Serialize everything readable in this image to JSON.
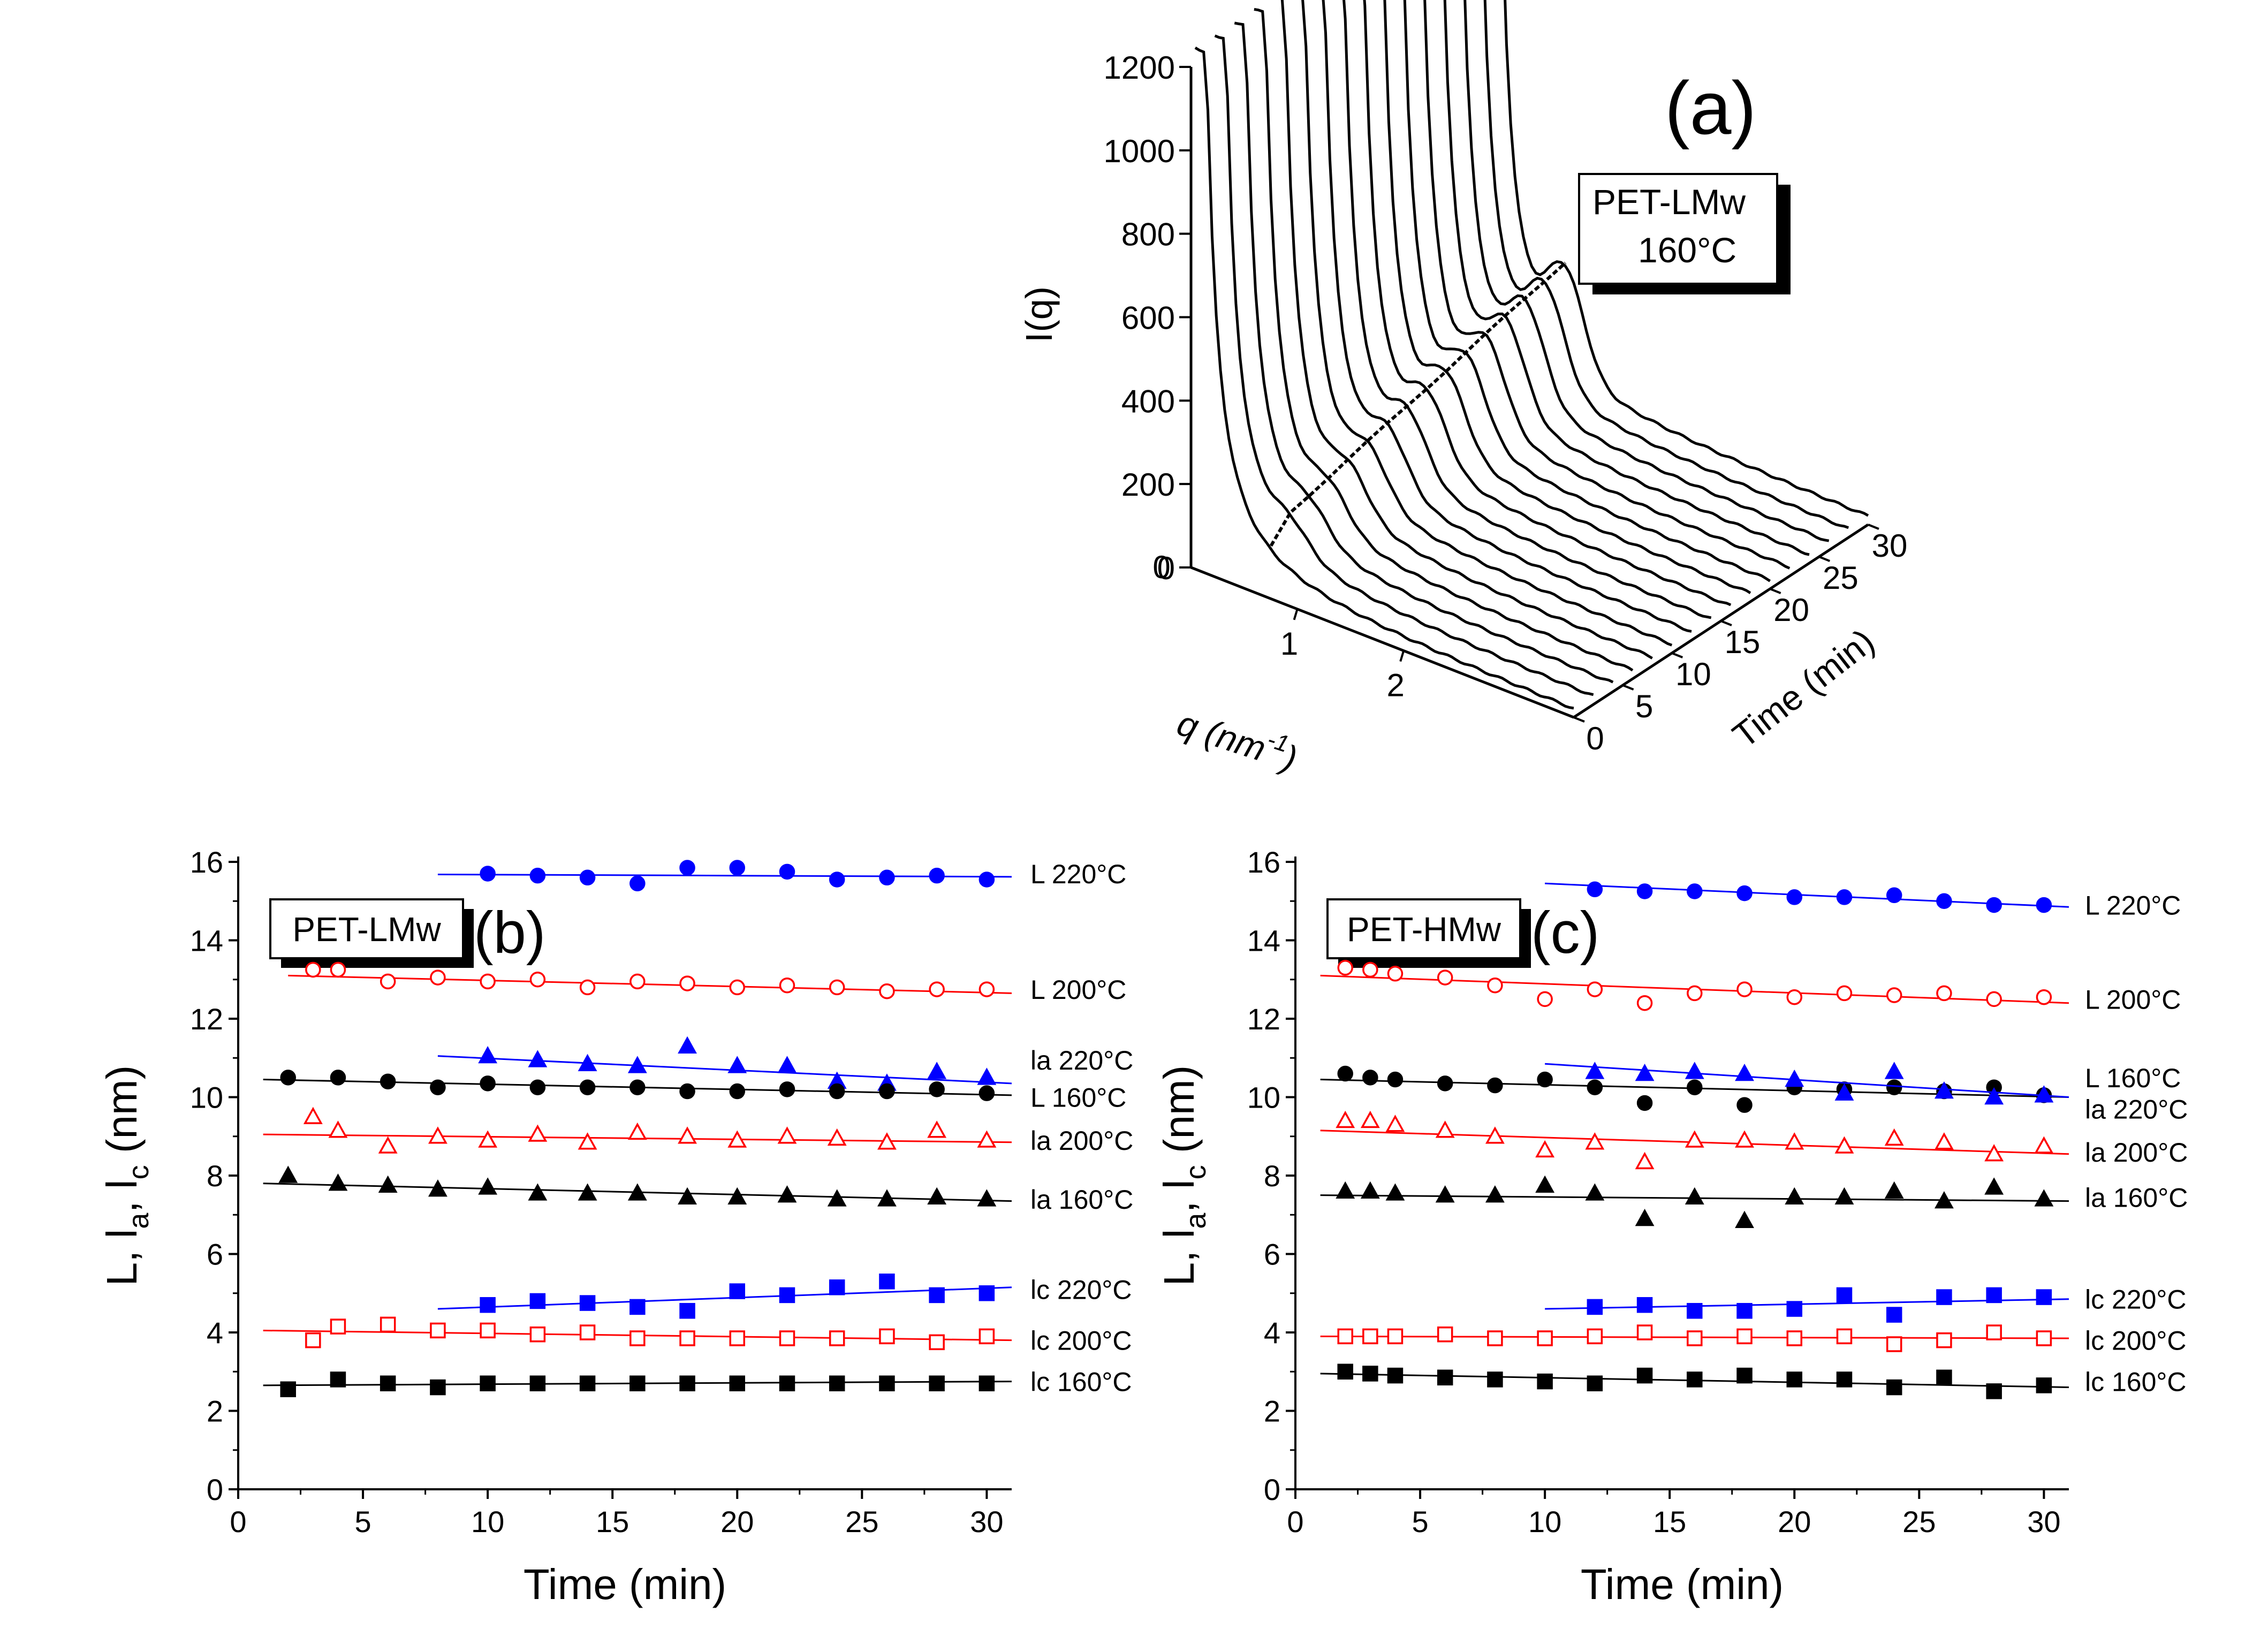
{
  "panel_a": {
    "label": "(a)",
    "box_line1": "PET-LMw",
    "box_line2": "160°C",
    "y_axis_label": "I(q)",
    "x_axis_label": "q (nm",
    "x_axis_sup": "-1",
    "x_axis_close": ")",
    "depth_axis_label": "Time (min)"
  },
  "chart_data": [
    {
      "panel": "a",
      "type": "line",
      "kind": "3d-waterfall",
      "title": "",
      "y": {
        "label": "I(q)",
        "ticks": [
          "0",
          "200",
          "400",
          "600",
          "800",
          "1000",
          "1200"
        ],
        "range": [
          0,
          1200
        ]
      },
      "x": {
        "label": "q (nm-1)",
        "ticks": [
          "1",
          "2"
        ],
        "range": [
          0,
          3.6
        ]
      },
      "z": {
        "label": "Time (min)",
        "ticks": [
          "0",
          "5",
          "10",
          "15",
          "20",
          "25",
          "30"
        ],
        "range": [
          0,
          30
        ]
      },
      "num_series": 16,
      "annotation": "PET-LMw 160°C"
    },
    {
      "panel": "b",
      "type": "scatter",
      "label": "(b)",
      "box": "PET-LMw",
      "xlabel": "Time (min)",
      "ylabel": "L, l",
      "ylabel_sub_a": "a",
      "ylabel_sub_c": "c",
      "ylabel_sep": ", l",
      "ylabel_unit": " (nm)",
      "xlim": [
        0,
        31
      ],
      "ylim": [
        0,
        16
      ],
      "xticks": [
        0,
        5,
        10,
        15,
        20,
        25,
        30
      ],
      "yticks": [
        0,
        2,
        4,
        6,
        8,
        10,
        12,
        14,
        16
      ],
      "series": [
        {
          "name": "L 220°C",
          "color": "#0000ff",
          "marker": "circle",
          "filled": true,
          "x": [
            10,
            12,
            14,
            16,
            18,
            20,
            22,
            24,
            26,
            28,
            30
          ],
          "y": [
            15.7,
            15.65,
            15.6,
            15.45,
            15.85,
            15.85,
            15.75,
            15.55,
            15.6,
            15.65,
            15.55
          ],
          "fit": [
            8,
            15.68,
            31,
            15.62
          ],
          "label_y": 15.7
        },
        {
          "name": "L 200°C",
          "color": "#ff0000",
          "marker": "circle",
          "filled": false,
          "x": [
            3,
            4,
            6,
            8,
            10,
            12,
            14,
            16,
            18,
            20,
            22,
            24,
            26,
            28,
            30
          ],
          "y": [
            13.25,
            13.25,
            12.95,
            13.05,
            12.95,
            13.0,
            12.8,
            12.95,
            12.9,
            12.8,
            12.85,
            12.8,
            12.7,
            12.75,
            12.75
          ],
          "fit": [
            2,
            13.1,
            31,
            12.65
          ],
          "label_y": 12.75
        },
        {
          "name": "la 220°C",
          "color": "#0000ff",
          "marker": "triangle",
          "filled": true,
          "x": [
            10,
            12,
            14,
            16,
            18,
            20,
            22,
            24,
            26,
            28,
            30
          ],
          "y": [
            11.05,
            10.95,
            10.85,
            10.8,
            11.3,
            10.8,
            10.8,
            10.4,
            10.35,
            10.65,
            10.5
          ],
          "fit": [
            8,
            11.05,
            31,
            10.35
          ],
          "label_y": 10.95
        },
        {
          "name": "L 160°C",
          "color": "#000000",
          "marker": "circle",
          "filled": true,
          "x": [
            2,
            4,
            6,
            8,
            10,
            12,
            14,
            16,
            18,
            20,
            22,
            24,
            26,
            28,
            30
          ],
          "y": [
            10.5,
            10.5,
            10.4,
            10.25,
            10.35,
            10.25,
            10.25,
            10.25,
            10.15,
            10.15,
            10.2,
            10.15,
            10.15,
            10.2,
            10.1
          ],
          "fit": [
            1,
            10.45,
            31,
            10.05
          ],
          "label_y": 10.0
        },
        {
          "name": "la 200°C",
          "color": "#ff0000",
          "marker": "triangle",
          "filled": false,
          "x": [
            3,
            4,
            6,
            8,
            10,
            12,
            14,
            16,
            18,
            20,
            22,
            24,
            26,
            28,
            30
          ],
          "y": [
            9.5,
            9.15,
            8.75,
            9.0,
            8.9,
            9.05,
            8.85,
            9.1,
            9.0,
            8.9,
            9.0,
            8.95,
            8.85,
            9.15,
            8.9
          ],
          "fit": [
            1,
            9.05,
            31,
            8.85
          ],
          "label_y": 8.9
        },
        {
          "name": "la 160°C",
          "color": "#000000",
          "marker": "triangle",
          "filled": true,
          "x": [
            2,
            4,
            6,
            8,
            10,
            12,
            14,
            16,
            18,
            20,
            22,
            24,
            26,
            28,
            30
          ],
          "y": [
            8.0,
            7.8,
            7.75,
            7.65,
            7.7,
            7.55,
            7.55,
            7.55,
            7.45,
            7.45,
            7.5,
            7.4,
            7.4,
            7.45,
            7.4
          ],
          "fit": [
            1,
            7.8,
            31,
            7.35
          ],
          "label_y": 7.4
        },
        {
          "name": "lc 220°C",
          "color": "#0000ff",
          "marker": "square",
          "filled": true,
          "x": [
            10,
            12,
            14,
            16,
            18,
            20,
            22,
            24,
            26,
            28,
            30
          ],
          "y": [
            4.7,
            4.8,
            4.75,
            4.65,
            4.55,
            5.05,
            4.95,
            5.15,
            5.3,
            4.95,
            5.0
          ],
          "fit": [
            8,
            4.6,
            31,
            5.15
          ],
          "label_y": 5.1
        },
        {
          "name": "lc 200°C",
          "color": "#ff0000",
          "marker": "square",
          "filled": false,
          "x": [
            3,
            4,
            6,
            8,
            10,
            12,
            14,
            16,
            18,
            20,
            22,
            24,
            26,
            28,
            30
          ],
          "y": [
            3.8,
            4.15,
            4.2,
            4.05,
            4.05,
            3.95,
            4.0,
            3.85,
            3.85,
            3.85,
            3.85,
            3.85,
            3.9,
            3.75,
            3.9
          ],
          "fit": [
            1,
            4.05,
            31,
            3.8
          ],
          "label_y": 3.8
        },
        {
          "name": "lc 160°C",
          "color": "#000000",
          "marker": "square",
          "filled": true,
          "x": [
            2,
            4,
            6,
            8,
            10,
            12,
            14,
            16,
            18,
            20,
            22,
            24,
            26,
            28,
            30
          ],
          "y": [
            2.55,
            2.8,
            2.7,
            2.6,
            2.7,
            2.7,
            2.7,
            2.7,
            2.7,
            2.7,
            2.7,
            2.7,
            2.7,
            2.7,
            2.7
          ],
          "fit": [
            1,
            2.65,
            31,
            2.75
          ],
          "label_y": 2.75
        }
      ]
    },
    {
      "panel": "c",
      "type": "scatter",
      "label": "(c)",
      "box": "PET-HMw",
      "xlabel": "Time (min)",
      "ylabel": "L, l",
      "ylabel_sub_a": "a",
      "ylabel_sub_c": "c",
      "ylabel_sep": ", l",
      "ylabel_unit": " (nm)",
      "xlim": [
        0,
        31
      ],
      "ylim": [
        0,
        16
      ],
      "xticks": [
        0,
        5,
        10,
        15,
        20,
        25,
        30
      ],
      "yticks": [
        0,
        2,
        4,
        6,
        8,
        10,
        12,
        14,
        16
      ],
      "series": [
        {
          "name": "L 220°C",
          "color": "#0000ff",
          "marker": "circle",
          "filled": true,
          "x": [
            12,
            14,
            16,
            18,
            20,
            22,
            24,
            26,
            28,
            30
          ],
          "y": [
            15.3,
            15.25,
            15.25,
            15.2,
            15.1,
            15.1,
            15.15,
            15.0,
            14.9,
            14.9
          ],
          "fit": [
            10,
            15.45,
            31,
            14.85
          ],
          "label_y": 14.9
        },
        {
          "name": "L 200°C",
          "color": "#ff0000",
          "marker": "circle",
          "filled": false,
          "x": [
            2,
            3,
            4,
            6,
            8,
            10,
            12,
            14,
            16,
            18,
            20,
            22,
            24,
            26,
            28,
            30
          ],
          "y": [
            13.3,
            13.25,
            13.15,
            13.05,
            12.85,
            12.5,
            12.75,
            12.4,
            12.65,
            12.75,
            12.55,
            12.65,
            12.6,
            12.65,
            12.5,
            12.55
          ],
          "fit": [
            1,
            13.1,
            31,
            12.4
          ],
          "label_y": 12.5
        },
        {
          "name": "L 160°C",
          "color": "#000000",
          "marker": "circle",
          "filled": true,
          "x": [
            2,
            3,
            4,
            6,
            8,
            10,
            12,
            14,
            16,
            18,
            20,
            22,
            24,
            26,
            28,
            30
          ],
          "y": [
            10.6,
            10.5,
            10.45,
            10.35,
            10.3,
            10.45,
            10.25,
            9.85,
            10.25,
            9.8,
            10.25,
            10.2,
            10.25,
            10.15,
            10.25,
            10.05
          ],
          "fit": [
            1,
            10.45,
            31,
            10.0
          ],
          "label_y": 10.5
        },
        {
          "name": "la 220°C",
          "color": "#0000ff",
          "marker": "triangle",
          "filled": true,
          "x": [
            12,
            14,
            16,
            18,
            20,
            22,
            24,
            26,
            28,
            30
          ],
          "y": [
            10.65,
            10.6,
            10.65,
            10.6,
            10.45,
            10.1,
            10.65,
            10.15,
            10.0,
            10.05
          ],
          "fit": [
            10,
            10.85,
            31,
            10.0
          ],
          "label_y": 9.7
        },
        {
          "name": "la 200°C",
          "color": "#ff0000",
          "marker": "triangle",
          "filled": false,
          "x": [
            2,
            3,
            4,
            6,
            8,
            10,
            12,
            14,
            16,
            18,
            20,
            22,
            24,
            26,
            28,
            30
          ],
          "y": [
            9.4,
            9.4,
            9.3,
            9.15,
            9.0,
            8.65,
            8.85,
            8.35,
            8.9,
            8.9,
            8.85,
            8.75,
            8.95,
            8.85,
            8.55,
            8.75
          ],
          "fit": [
            1,
            9.15,
            31,
            8.55
          ],
          "label_y": 8.6
        },
        {
          "name": "la 160°C",
          "color": "#000000",
          "marker": "triangle",
          "filled": true,
          "x": [
            2,
            3,
            4,
            6,
            8,
            10,
            12,
            14,
            16,
            18,
            20,
            22,
            24,
            26,
            28,
            30
          ],
          "y": [
            7.6,
            7.6,
            7.55,
            7.5,
            7.5,
            7.75,
            7.55,
            6.9,
            7.45,
            6.85,
            7.45,
            7.45,
            7.6,
            7.35,
            7.7,
            7.4
          ],
          "fit": [
            1,
            7.5,
            31,
            7.35
          ],
          "label_y": 7.45
        },
        {
          "name": "lc 220°C",
          "color": "#0000ff",
          "marker": "square",
          "filled": true,
          "x": [
            12,
            14,
            16,
            18,
            20,
            22,
            24,
            26,
            28,
            30
          ],
          "y": [
            4.65,
            4.7,
            4.55,
            4.55,
            4.6,
            4.95,
            4.45,
            4.9,
            4.95,
            4.9
          ],
          "fit": [
            10,
            4.6,
            31,
            4.85
          ],
          "label_y": 4.85
        },
        {
          "name": "lc 200°C",
          "color": "#ff0000",
          "marker": "square",
          "filled": false,
          "x": [
            2,
            3,
            4,
            6,
            8,
            10,
            12,
            14,
            16,
            18,
            20,
            22,
            24,
            26,
            28,
            30
          ],
          "y": [
            3.9,
            3.9,
            3.9,
            3.95,
            3.85,
            3.85,
            3.9,
            4.0,
            3.85,
            3.9,
            3.85,
            3.9,
            3.7,
            3.8,
            4.0,
            3.85
          ],
          "fit": [
            1,
            3.9,
            31,
            3.85
          ],
          "label_y": 3.8
        },
        {
          "name": "lc 160°C",
          "color": "#000000",
          "marker": "square",
          "filled": true,
          "x": [
            2,
            3,
            4,
            6,
            8,
            10,
            12,
            14,
            16,
            18,
            20,
            22,
            24,
            26,
            28,
            30
          ],
          "y": [
            3.0,
            2.95,
            2.9,
            2.85,
            2.8,
            2.75,
            2.7,
            2.9,
            2.8,
            2.9,
            2.8,
            2.8,
            2.6,
            2.85,
            2.5,
            2.65
          ],
          "fit": [
            1,
            2.95,
            31,
            2.6
          ],
          "label_y": 2.75
        }
      ]
    }
  ]
}
